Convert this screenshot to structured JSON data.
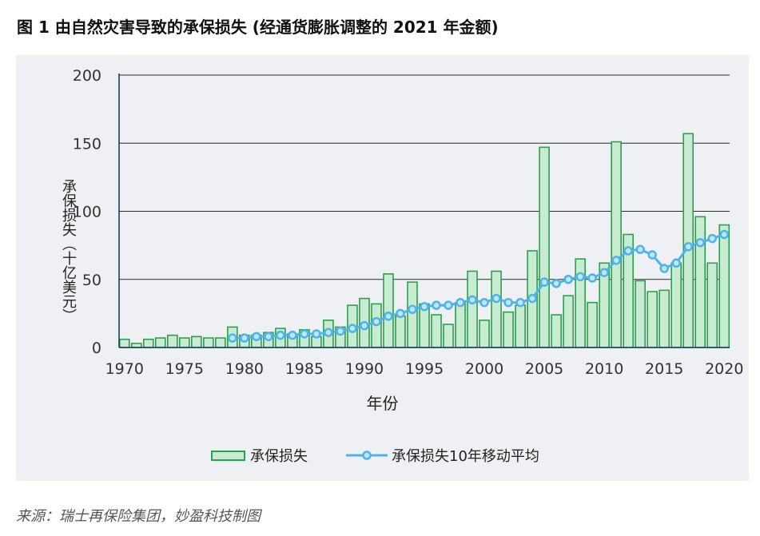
{
  "title": "图 1 由自然灾害导致的承保损失 (经通货膨胀调整的 2021 年金额)",
  "source": "来源：瑞士再保险集团，妙盈科技制图",
  "colors": {
    "panel_bg": "#eef0f4",
    "bar_fill": "#c8ecd2",
    "bar_stroke": "#2e9f4d",
    "line": "#4fb3ea",
    "axis": "#1f3a5a",
    "grid": "#2b2b2b"
  },
  "chart_data": {
    "type": "bar",
    "title": "",
    "xlabel": "年份",
    "ylabel": "承保损失（十亿美元）",
    "ylim": [
      0,
      200
    ],
    "yticks": [
      "0",
      "50",
      "100",
      "150",
      "200"
    ],
    "xticks": [
      "1970",
      "1975",
      "1980",
      "1985",
      "1990",
      "1995",
      "2000",
      "2005",
      "2010",
      "2015",
      "2020"
    ],
    "grid": true,
    "legend_position": "bottom",
    "x": [
      1970,
      1971,
      1972,
      1973,
      1974,
      1975,
      1976,
      1977,
      1978,
      1979,
      1980,
      1981,
      1982,
      1983,
      1984,
      1985,
      1986,
      1987,
      1988,
      1989,
      1990,
      1991,
      1992,
      1993,
      1994,
      1995,
      1996,
      1997,
      1998,
      1999,
      2000,
      2001,
      2002,
      2003,
      2004,
      2005,
      2006,
      2007,
      2008,
      2009,
      2010,
      2011,
      2012,
      2013,
      2014,
      2015,
      2016,
      2017,
      2018,
      2019,
      2020
    ],
    "series": [
      {
        "name": "承保损失",
        "type": "bar",
        "values": [
          6,
          3,
          6,
          7,
          9,
          7,
          8,
          7,
          7,
          15,
          9,
          9,
          11,
          14,
          10,
          13,
          8,
          20,
          15,
          31,
          36,
          32,
          54,
          23,
          48,
          32,
          24,
          17,
          33,
          56,
          20,
          56,
          26,
          31,
          71,
          147,
          24,
          38,
          65,
          33,
          62,
          151,
          83,
          49,
          41,
          42,
          62,
          157,
          96,
          62,
          90
        ]
      },
      {
        "name": "承保损失10年移动平均",
        "type": "line",
        "x": [
          1979,
          1980,
          1981,
          1982,
          1983,
          1984,
          1985,
          1986,
          1987,
          1988,
          1989,
          1990,
          1991,
          1992,
          1993,
          1994,
          1995,
          1996,
          1997,
          1998,
          1999,
          2000,
          2001,
          2002,
          2003,
          2004,
          2005,
          2006,
          2007,
          2008,
          2009,
          2010,
          2011,
          2012,
          2013,
          2014,
          2015,
          2016,
          2017,
          2018,
          2019,
          2020
        ],
        "values": [
          7,
          7,
          8,
          8,
          9,
          9,
          10,
          10,
          11,
          12,
          14,
          16,
          19,
          23,
          25,
          28,
          30,
          31,
          31,
          33,
          35,
          33,
          36,
          33,
          33,
          36,
          48,
          47,
          50,
          52,
          51,
          55,
          64,
          71,
          72,
          68,
          58,
          62,
          74,
          77,
          80,
          83
        ]
      }
    ]
  }
}
